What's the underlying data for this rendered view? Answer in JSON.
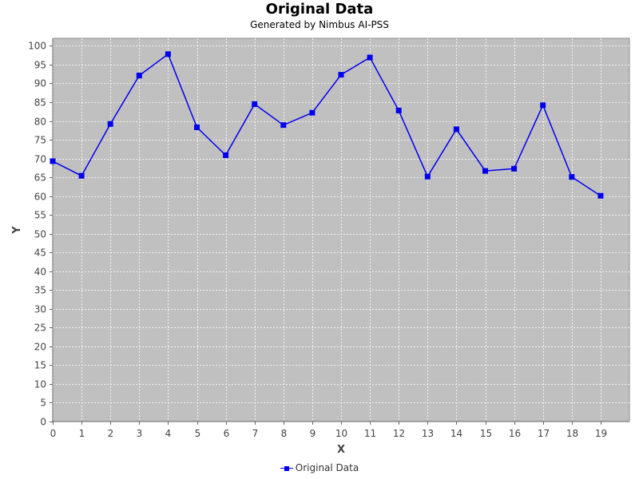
{
  "chart_data": {
    "type": "line",
    "title": "Original Data",
    "subtitle": "Generated by Nimbus AI-PSS",
    "xlabel": "X",
    "ylabel": "Y",
    "xlim": [
      0,
      20
    ],
    "ylim": [
      0,
      102
    ],
    "x_ticks": [
      0,
      1,
      2,
      3,
      4,
      5,
      6,
      7,
      8,
      9,
      10,
      11,
      12,
      13,
      14,
      15,
      16,
      17,
      18,
      19
    ],
    "y_ticks": [
      0,
      5,
      10,
      15,
      20,
      25,
      30,
      35,
      40,
      45,
      50,
      55,
      60,
      65,
      70,
      75,
      80,
      85,
      90,
      95,
      100
    ],
    "grid": true,
    "legend_position": "bottom-center",
    "series": [
      {
        "name": "Original Data",
        "color": "#0000ee",
        "marker": "square",
        "x": [
          0,
          1,
          2,
          3,
          4,
          5,
          6,
          7,
          8,
          9,
          10,
          11,
          12,
          13,
          14,
          15,
          16,
          17,
          18,
          19
        ],
        "values": [
          69.3,
          65.4,
          79.2,
          92.1,
          97.8,
          78.3,
          70.9,
          84.5,
          78.9,
          82.2,
          92.3,
          96.9,
          82.8,
          65.2,
          77.8,
          66.7,
          67.3,
          84.2,
          65.1,
          60.1
        ]
      }
    ],
    "plot_background": "#c0c0c0"
  }
}
